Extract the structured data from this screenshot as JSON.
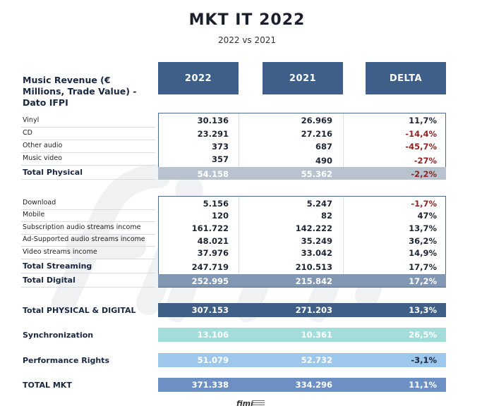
{
  "title": "MKT IT 2022",
  "subtitle": "2022 vs 2021",
  "header": {
    "label": "Music Revenue (€ Millions, Trade Value) - Dato IFPI",
    "col_2022": "2022",
    "col_2021": "2021",
    "col_delta": "DELTA"
  },
  "physical": {
    "rows": [
      {
        "label": "Vinyl",
        "v2022": "30.136",
        "v2021": "26.969",
        "delta": "11,7%"
      },
      {
        "label": "CD",
        "v2022": "23.291",
        "v2021": "27.216",
        "delta": "-14,4%"
      },
      {
        "label": "Other audio",
        "v2022": "373",
        "v2021": "687",
        "delta": "-45,7%"
      },
      {
        "label": "Music video",
        "v2022": "357",
        "v2021": "490",
        "delta": "-27%"
      }
    ],
    "total": {
      "label": "Total Physical",
      "v2022": "54.158",
      "v2021": "55.362",
      "delta": "-2,2%"
    }
  },
  "digital": {
    "rows": [
      {
        "label": "Download",
        "v2022": "5.156",
        "v2021": "5.247",
        "delta": "-1,7%"
      },
      {
        "label": "Mobile",
        "v2022": "120",
        "v2021": "82",
        "delta": "47%"
      },
      {
        "label": "Subscription audio streams income",
        "v2022": "161.722",
        "v2021": "142.222",
        "delta": "13,7%"
      },
      {
        "label": "Ad-Supported audio streams income",
        "v2022": "48.021",
        "v2021": "35.249",
        "delta": "36,2%"
      },
      {
        "label": "Video streams income",
        "v2022": "37.976",
        "v2021": "33.042",
        "delta": "14,9%"
      }
    ],
    "streaming": {
      "label": "Total Streaming",
      "v2022": "247.719",
      "v2021": "210.513",
      "delta": "17,7%"
    },
    "total": {
      "label": "Total Digital",
      "v2022": "252.995",
      "v2021": "215.842",
      "delta": "17,2%"
    }
  },
  "summary": [
    {
      "label": "Total PHYSICAL & DIGITAL",
      "v2022": "307.153",
      "v2021": "271.203",
      "delta": "13,3%",
      "color": "#3f5f86"
    },
    {
      "label": "Synchronization",
      "v2022": "13.106",
      "v2021": "10.361",
      "delta": "26,5%",
      "color": "#a3dcd9"
    },
    {
      "label": "Performance Rights",
      "v2022": "51.079",
      "v2021": "52.732",
      "delta": "-3,1%",
      "color": "#9dc8ec"
    },
    {
      "label": "TOTAL MKT",
      "v2022": "371.338",
      "v2021": "334.296",
      "delta": "11,1%",
      "color": "#6d90c4"
    }
  ],
  "footer": {
    "logo": "fimi"
  },
  "watermark": "fimi"
}
